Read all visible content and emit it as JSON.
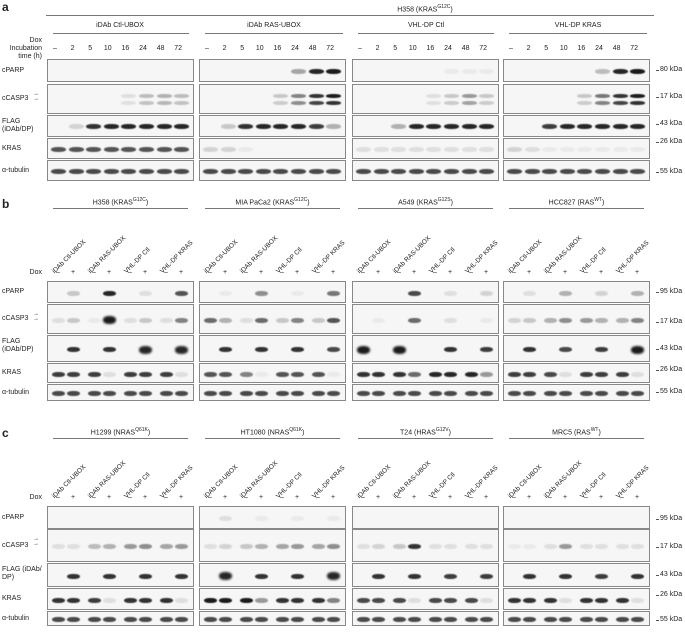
{
  "panel_a": {
    "letter": "a",
    "title": "H358 (KRAS",
    "title_sup": "G12C",
    "title_end": ")",
    "dox_label": "Dox",
    "time_label": "Incubation time (h)",
    "groups": [
      "iDAb  Ctl-UBOX",
      "iDAb RAS-UBOX",
      "VHL-DP Ctl",
      "VHL-DP KRAS"
    ],
    "timepoints": [
      "–",
      "2",
      "5",
      "10",
      "16",
      "24",
      "48",
      "72"
    ],
    "rows": [
      "cPARP",
      "cCASP3",
      "FLAG (iDAb/DP)",
      "KRAS",
      "α-tubulin"
    ],
    "kda": [
      "80 kDa",
      "17 kDa",
      "43 kDa",
      "26 kDa",
      "55 kDa"
    ]
  },
  "panel_b": {
    "letter": "b",
    "dox_label": "Dox",
    "cell_lines": [
      {
        "name": "H358 (KRAS",
        "sup": "G12C",
        "end": ")"
      },
      {
        "name": "MIA PaCa2 (KRAS",
        "sup": "G12C",
        "end": ")"
      },
      {
        "name": "A549 (KRAS",
        "sup": "G12S",
        "end": ")"
      },
      {
        "name": "HCC827 (RAS",
        "sup": "WT",
        "end": ")"
      }
    ],
    "constructs": [
      "iDAb Ctl-UBOX",
      "iDAb RAS-UBOX",
      "VHL-DP Ctl",
      "VHL-DP KRAS"
    ],
    "dox_states": [
      "–",
      "+"
    ],
    "rows": [
      "cPARP",
      "cCASP3",
      "FLAG (iDAb/DP)",
      "KRAS",
      "α-tubulin"
    ],
    "kda": [
      "95 kDa",
      "17 kDa",
      "43 kDa",
      "26 kDa",
      "55 kDa"
    ]
  },
  "panel_c": {
    "letter": "c",
    "dox_label": "Dox",
    "cell_lines": [
      {
        "name": "H1299 (NRAS",
        "sup": "Q61K",
        "end": ")"
      },
      {
        "name": "HT1080 (NRAS",
        "sup": "Q61K",
        "end": ")"
      },
      {
        "name": "T24 (HRAS",
        "sup": "G12V",
        "end": ")"
      },
      {
        "name": "MRC5 (RAS",
        "sup": "WT",
        "end": ")"
      }
    ],
    "constructs": [
      "iDAb Ctl-UBOX",
      "iDAb RAS-UBOX",
      "VHL-DP Ctl",
      "VHL-DP KRAS"
    ],
    "dox_states": [
      "–",
      "+"
    ],
    "rows": [
      "cPARP",
      "cCASP3",
      "FLAG (iDAb/ DP)",
      "KRAS",
      "α-tubulin"
    ],
    "kda": [
      "95 kDa",
      "17 kDa",
      "43 kDa",
      "26 kDa",
      "55 kDa"
    ]
  }
}
